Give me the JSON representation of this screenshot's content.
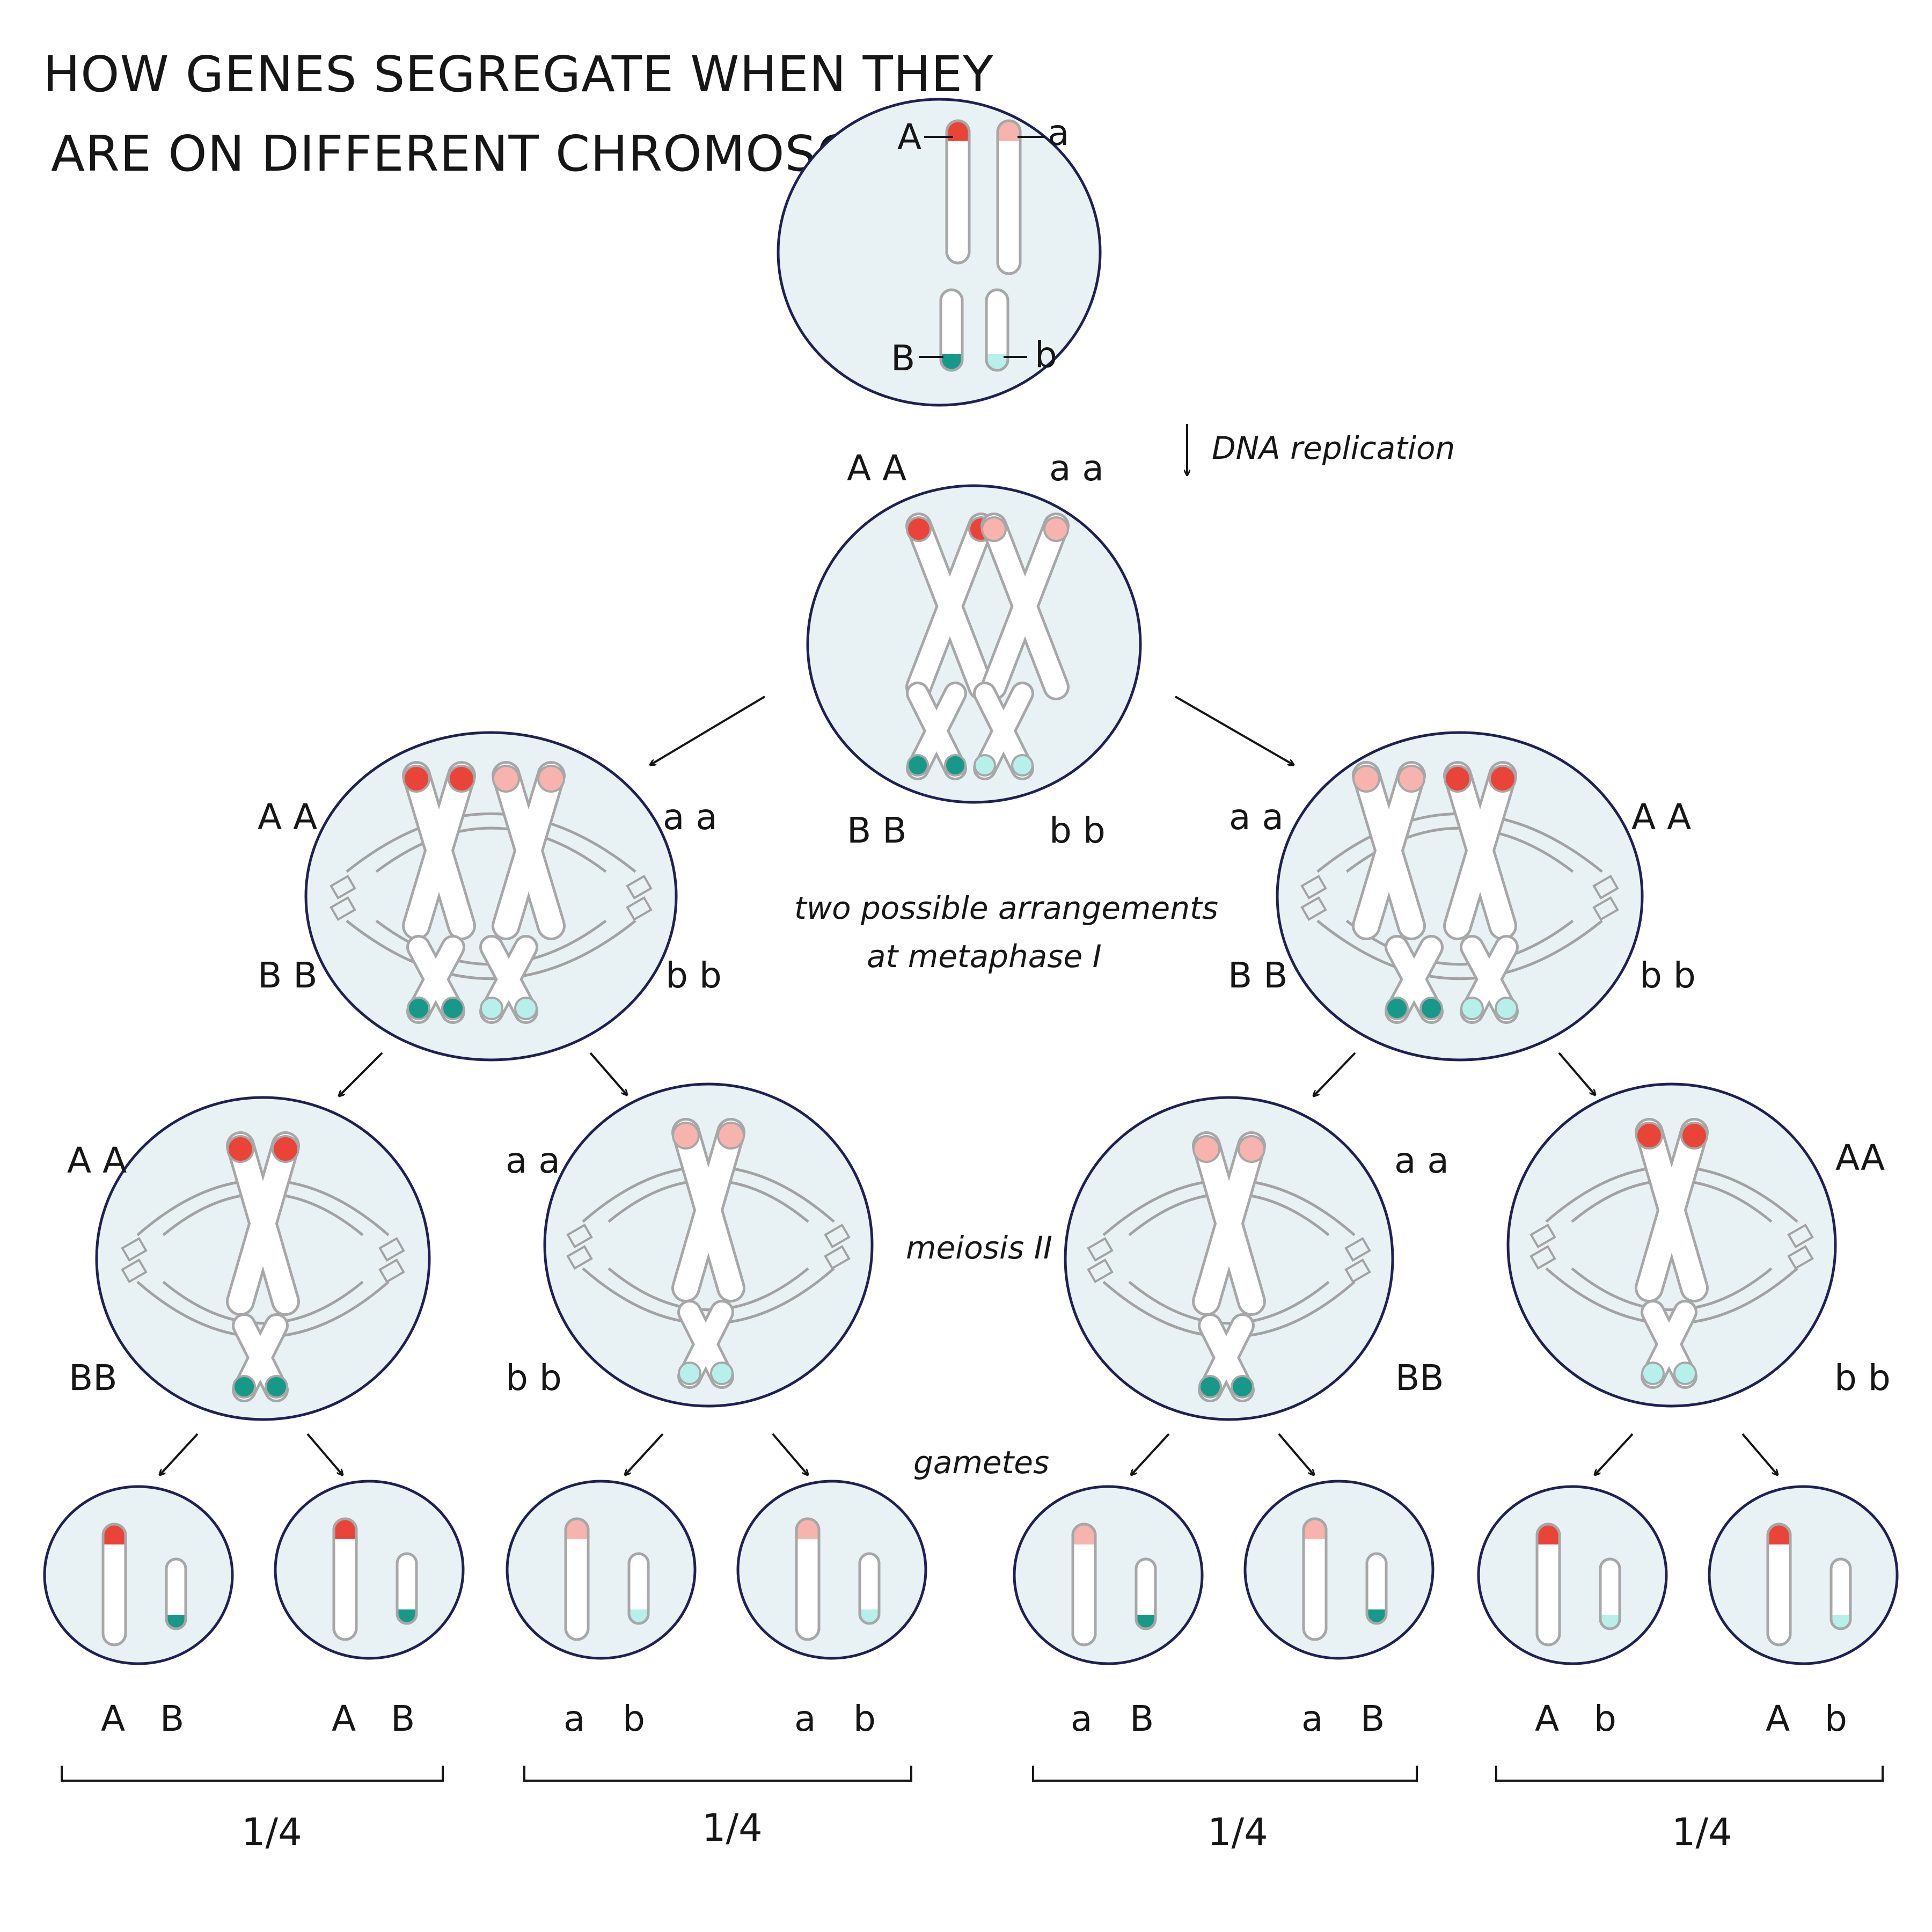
{
  "title": {
    "line1": "HOW GENES SEGREGATE WHEN THEY",
    "line2": "ARE ON DIFFERENT CHROMOSOMES"
  },
  "colors": {
    "cell_fill": "#e8f2f4",
    "cell_outline": "#1f2155",
    "chromosome_fill": "#ffffff",
    "chromosome_outline": "#a7a7a7",
    "allele_A": "#ea4439",
    "allele_a": "#f7b3ae",
    "allele_B": "#17998a",
    "allele_b": "#b7efea",
    "spindle": "#a2a2a2"
  },
  "parent_cell": {
    "label_A": "A",
    "label_a": "a",
    "label_B": "B",
    "label_b": "b"
  },
  "replication": {
    "label": "DNA replication",
    "label_AA": "A A",
    "label_aa": "a a",
    "label_BB": "B B",
    "label_bb": "b b"
  },
  "metaphase_one": {
    "note_line1": "two possible arrangements",
    "note_line2": "at metaphase I",
    "left": {
      "top_left": "A A",
      "top_right": "a a",
      "bottom_left": "B B",
      "bottom_right": "b b"
    },
    "right": {
      "top_left": "a a",
      "top_right": "A A",
      "bottom_left": "B B",
      "bottom_right": "b b"
    }
  },
  "meiosis_two": {
    "label": "meiosis II",
    "cells": [
      {
        "top": "A A",
        "bottom": "BB"
      },
      {
        "top": "a a",
        "bottom": "b b"
      },
      {
        "top": "a a",
        "bottom": "BB"
      },
      {
        "top": "AA",
        "bottom": "b b"
      }
    ]
  },
  "gametes": {
    "label": "gametes",
    "cells": [
      {
        "first": "A",
        "second": "B"
      },
      {
        "first": "A",
        "second": "B"
      },
      {
        "first": "a",
        "second": "b"
      },
      {
        "first": "a",
        "second": "b"
      },
      {
        "first": "a",
        "second": "B"
      },
      {
        "first": "a",
        "second": "B"
      },
      {
        "first": "A",
        "second": "b"
      },
      {
        "first": "A",
        "second": "b"
      }
    ],
    "fractions": [
      "1/4",
      "1/4",
      "1/4",
      "1/4"
    ]
  }
}
